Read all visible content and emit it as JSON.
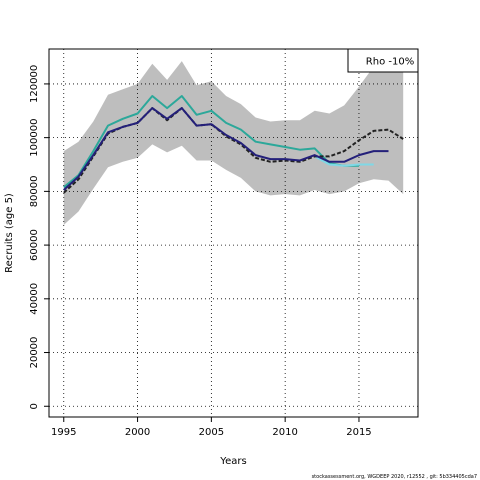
{
  "chart_data": {
    "type": "line",
    "xlabel": "Years",
    "ylabel": "Recruits (age 5)",
    "xlim": [
      1994,
      2019
    ],
    "ylim": [
      -4000,
      133000
    ],
    "grid": true,
    "legend": {
      "position": "top-right",
      "label": "Rho -10%"
    },
    "x_ticks": [
      1995,
      2000,
      2005,
      2010,
      2015
    ],
    "y_ticks": [
      0,
      20000,
      40000,
      60000,
      80000,
      100000,
      120000
    ],
    "band": {
      "color": "#bebebe",
      "x": [
        1995,
        1996,
        1997,
        1998,
        1999,
        2000,
        2001,
        2002,
        2003,
        2004,
        2005,
        2006,
        2007,
        2008,
        2009,
        2010,
        2011,
        2012,
        2013,
        2014,
        2015,
        2016,
        2017,
        2018
      ],
      "upper": [
        95000,
        98500,
        106000,
        116000,
        118000,
        120000,
        127500,
        121500,
        128500,
        119500,
        121000,
        115500,
        112500,
        107500,
        106000,
        106500,
        106500,
        110000,
        109000,
        112000,
        119000,
        126500,
        126500,
        127000
      ],
      "lower": [
        67500,
        72500,
        81000,
        89000,
        91000,
        92500,
        97500,
        94500,
        97000,
        91500,
        91500,
        88000,
        85000,
        80000,
        78500,
        79000,
        78500,
        80500,
        79000,
        80000,
        83000,
        84500,
        84000,
        79000
      ]
    },
    "series": [
      {
        "color": "#2ca89a",
        "style": "solid",
        "x": [
          1995,
          1996,
          1997,
          1998,
          1999,
          2000,
          2001,
          2002,
          2003,
          2004,
          2005,
          2006,
          2007,
          2008,
          2009,
          2010,
          2011,
          2012,
          2013,
          2014,
          2015
        ],
        "y": [
          81500,
          86000,
          95000,
          104500,
          107000,
          109000,
          115500,
          111000,
          115500,
          108500,
          110000,
          105500,
          103000,
          98500,
          97500,
          96500,
          95500,
          96000,
          90500,
          89500,
          89500
        ]
      },
      {
        "color": "#7fd8e6",
        "style": "solid",
        "x": [
          2012,
          2013,
          2014,
          2015,
          2016
        ],
        "y": [
          93000,
          90000,
          89500,
          90000,
          90000
        ]
      },
      {
        "color": "#222222",
        "style": "dashed",
        "x": [
          1995,
          1996,
          1997,
          1998,
          1999,
          2000,
          2001,
          2002,
          2003,
          2004,
          2005,
          2006,
          2007,
          2008,
          2009,
          2010,
          2011,
          2012,
          2013,
          2014,
          2015,
          2016,
          2017,
          2018
        ],
        "y": [
          79500,
          84500,
          93000,
          101500,
          104000,
          105500,
          111000,
          106500,
          111000,
          104500,
          105000,
          100500,
          97500,
          92500,
          91000,
          91500,
          91000,
          93000,
          93000,
          95000,
          99000,
          102500,
          103000,
          99500
        ]
      },
      {
        "color": "#24207a",
        "style": "solid",
        "x": [
          1995,
          1996,
          1997,
          1998,
          1999,
          2000,
          2001,
          2002,
          2003,
          2004,
          2005,
          2006,
          2007,
          2008,
          2009,
          2010,
          2011,
          2012,
          2013,
          2014,
          2015,
          2016,
          2017
        ],
        "y": [
          80500,
          85500,
          93500,
          102000,
          104000,
          105500,
          111000,
          107000,
          111000,
          104500,
          105000,
          101000,
          98000,
          93500,
          92000,
          92000,
          91500,
          93500,
          91000,
          91000,
          93500,
          95000,
          95000
        ]
      }
    ]
  },
  "footer": "stockassessment.org, WGDEEP 2020, r12552 , git: 5b334405cda7"
}
